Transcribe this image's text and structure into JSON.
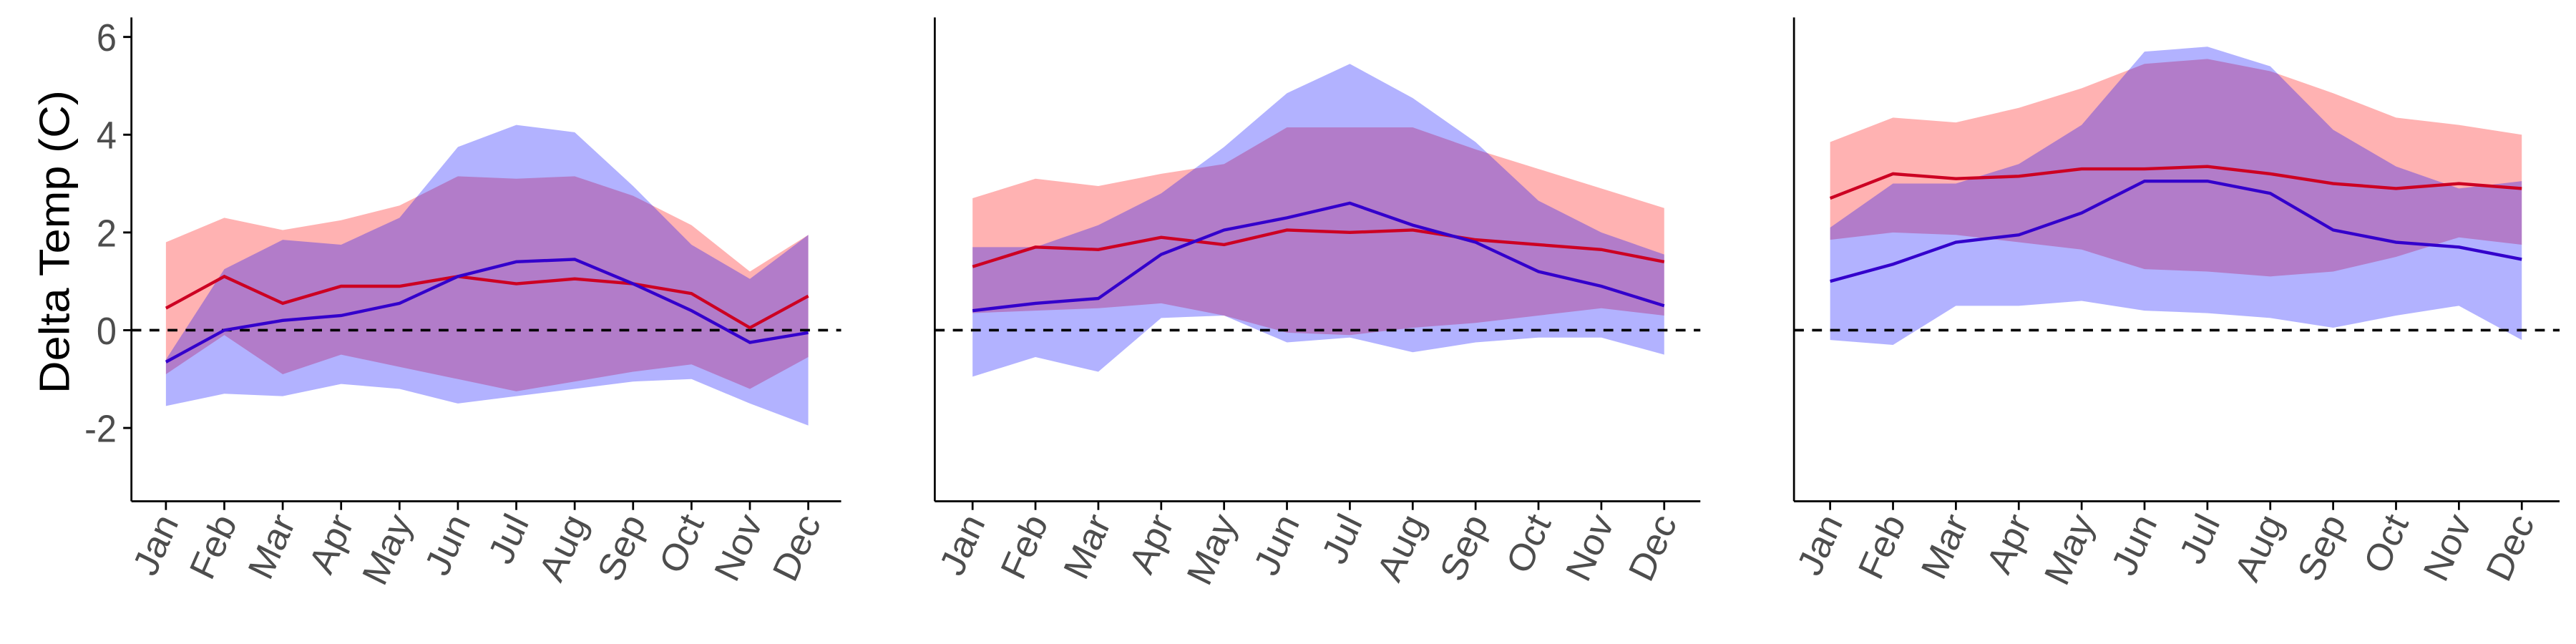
{
  "chart_data": [
    {
      "type": "line",
      "y_label": "Delta Temp (C)",
      "categories": [
        "Jan",
        "Feb",
        "Mar",
        "Apr",
        "May",
        "Jun",
        "Jul",
        "Aug",
        "Sep",
        "Oct",
        "Nov",
        "Dec"
      ],
      "ylim": [
        -3.5,
        6.4
      ],
      "yticks": [
        -2,
        0,
        2,
        4,
        6
      ],
      "hline": 0,
      "series": [
        {
          "color": "#ff0000",
          "line_color": "#cc0022",
          "values": [
            0.45,
            1.1,
            0.55,
            0.9,
            0.9,
            1.1,
            0.95,
            1.05,
            0.95,
            0.75,
            0.05,
            0.7
          ],
          "lower": [
            -0.9,
            -0.1,
            -0.9,
            -0.5,
            -0.75,
            -1.0,
            -1.25,
            -1.05,
            -0.85,
            -0.7,
            -1.2,
            -0.55
          ],
          "upper": [
            1.8,
            2.3,
            2.05,
            2.25,
            2.55,
            3.15,
            3.1,
            3.15,
            2.75,
            2.15,
            1.2,
            1.95
          ]
        },
        {
          "color": "#0000ff",
          "line_color": "#3300cc",
          "values": [
            -0.65,
            0.0,
            0.2,
            0.3,
            0.55,
            1.1,
            1.4,
            1.45,
            0.95,
            0.4,
            -0.25,
            -0.05
          ],
          "lower": [
            -1.55,
            -1.3,
            -1.35,
            -1.1,
            -1.2,
            -1.5,
            -1.35,
            -1.2,
            -1.05,
            -1.0,
            -1.5,
            -1.95
          ],
          "upper": [
            -0.6,
            1.25,
            1.85,
            1.75,
            2.3,
            3.75,
            4.2,
            4.05,
            2.95,
            1.75,
            1.05,
            1.95
          ]
        }
      ]
    },
    {
      "type": "line",
      "categories": [
        "Jan",
        "Feb",
        "Mar",
        "Apr",
        "May",
        "Jun",
        "Jul",
        "Aug",
        "Sep",
        "Oct",
        "Nov",
        "Dec"
      ],
      "ylim": [
        -3.5,
        6.4
      ],
      "hline": 0,
      "series": [
        {
          "color": "#ff0000",
          "line_color": "#cc0022",
          "values": [
            1.3,
            1.7,
            1.65,
            1.9,
            1.75,
            2.05,
            2.0,
            2.05,
            1.85,
            1.75,
            1.65,
            1.4
          ],
          "lower": [
            0.35,
            0.4,
            0.45,
            0.55,
            0.3,
            -0.05,
            -0.1,
            0.05,
            0.15,
            0.3,
            0.45,
            0.3
          ],
          "upper": [
            2.7,
            3.1,
            2.95,
            3.2,
            3.4,
            4.15,
            4.15,
            4.15,
            3.7,
            3.3,
            2.9,
            2.5
          ]
        },
        {
          "color": "#0000ff",
          "line_color": "#3300cc",
          "values": [
            0.4,
            0.55,
            0.65,
            1.55,
            2.05,
            2.3,
            2.6,
            2.15,
            1.8,
            1.2,
            0.9,
            0.5
          ],
          "lower": [
            -0.95,
            -0.55,
            -0.85,
            0.25,
            0.3,
            -0.25,
            -0.15,
            -0.45,
            -0.25,
            -0.15,
            -0.15,
            -0.5
          ],
          "upper": [
            1.7,
            1.7,
            2.15,
            2.8,
            3.75,
            4.85,
            5.45,
            4.75,
            3.85,
            2.65,
            2.0,
            1.55
          ]
        }
      ]
    },
    {
      "type": "line",
      "categories": [
        "Jan",
        "Feb",
        "Mar",
        "Apr",
        "May",
        "Jun",
        "Jul",
        "Aug",
        "Sep",
        "Oct",
        "Nov",
        "Dec"
      ],
      "ylim": [
        -3.5,
        6.4
      ],
      "hline": 0,
      "series": [
        {
          "color": "#ff0000",
          "line_color": "#cc0022",
          "values": [
            2.7,
            3.2,
            3.1,
            3.15,
            3.3,
            3.3,
            3.35,
            3.2,
            3.0,
            2.9,
            3.0,
            2.9
          ],
          "lower": [
            1.85,
            2.0,
            1.95,
            1.8,
            1.65,
            1.25,
            1.2,
            1.1,
            1.2,
            1.5,
            1.9,
            1.75
          ],
          "upper": [
            3.85,
            4.35,
            4.25,
            4.55,
            4.95,
            5.45,
            5.55,
            5.3,
            4.85,
            4.35,
            4.2,
            4.0
          ]
        },
        {
          "color": "#0000ff",
          "line_color": "#3300cc",
          "values": [
            1.0,
            1.35,
            1.8,
            1.95,
            2.4,
            3.05,
            3.05,
            2.8,
            2.05,
            1.8,
            1.7,
            1.45
          ],
          "lower": [
            -0.2,
            -0.3,
            0.5,
            0.5,
            0.6,
            0.4,
            0.35,
            0.25,
            0.05,
            0.3,
            0.5,
            -0.2
          ],
          "upper": [
            2.1,
            3.0,
            3.0,
            3.4,
            4.2,
            5.7,
            5.8,
            5.4,
            4.1,
            3.35,
            2.9,
            3.05
          ]
        }
      ]
    }
  ]
}
